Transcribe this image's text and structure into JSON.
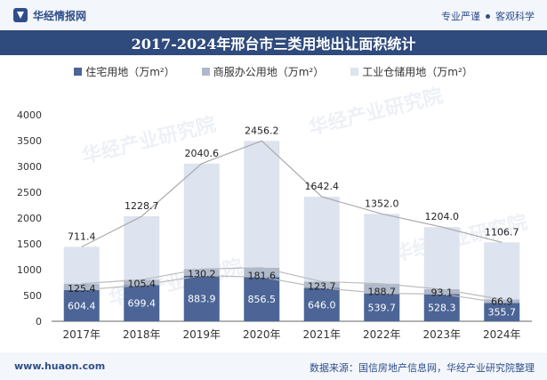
{
  "header": {
    "brand": "华经情报网",
    "tag1": "专业严谨",
    "tag2": "客观科学"
  },
  "watermark": "华经产业研究院",
  "colors": {
    "series1": "#4c6596",
    "series2": "#aeb9cc",
    "series3": "#dde3ef",
    "title_bg": "#2f4a7c"
  },
  "chart_data": {
    "type": "bar",
    "stacked": true,
    "title": "2017-2024年邢台市三类用地出让面积统计",
    "categories": [
      "2017年",
      "2018年",
      "2019年",
      "2020年",
      "2021年",
      "2022年",
      "2023年",
      "2024年"
    ],
    "series": [
      {
        "name": "住宅用地（万m²）",
        "values": [
          604.4,
          699.4,
          883.9,
          856.5,
          646.0,
          539.7,
          528.3,
          355.7
        ]
      },
      {
        "name": "商服办公用地（万m²）",
        "values": [
          125.4,
          105.4,
          130.2,
          181.6,
          123.7,
          188.7,
          93.1,
          66.9
        ]
      },
      {
        "name": "工业仓储用地（万m²）",
        "values": [
          711.4,
          1228.7,
          2040.6,
          2456.2,
          1642.4,
          1352.0,
          1204.0,
          1106.7
        ]
      }
    ],
    "value_labels": {
      "s1": [
        "604.4",
        "699.4",
        "883.9",
        "856.5",
        "646.0",
        "539.7",
        "528.3",
        "355.7"
      ],
      "s2": [
        "125.4",
        "105.4",
        "130.2",
        "181.6",
        "123.7",
        "188.7",
        "93.1",
        "66.9"
      ],
      "s3": [
        "711.4",
        "1228.7",
        "2040.6",
        "2456.2",
        "1642.4",
        "1352.0",
        "1204.0",
        "1106.7"
      ]
    },
    "yticks": [
      "0",
      "500",
      "1000",
      "1500",
      "2000",
      "2500",
      "3000",
      "3500",
      "4000"
    ],
    "ylim": [
      0,
      4000
    ],
    "legend_position": "top",
    "grid": false
  },
  "footer": {
    "site": "www.huaon.com",
    "source": "数据来源：国信房地产信息网，华经产业研究院整理"
  }
}
